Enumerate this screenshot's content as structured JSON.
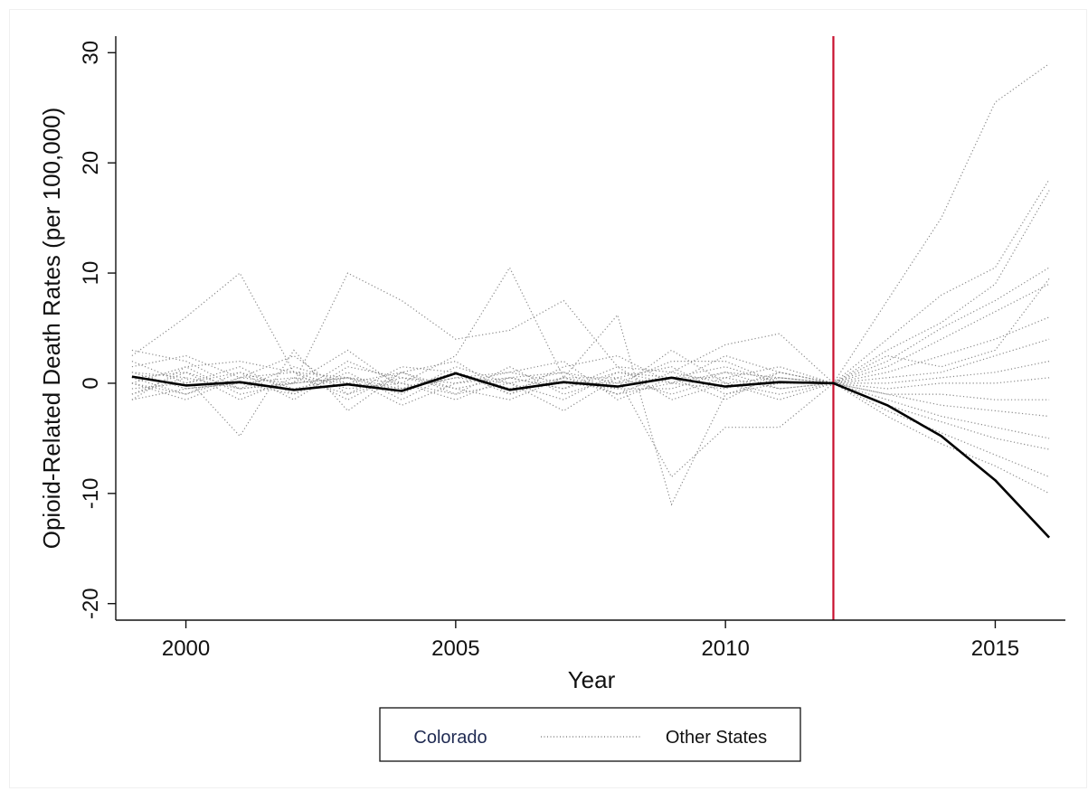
{
  "chart_data": {
    "type": "line",
    "title": "",
    "xlabel": "Year",
    "ylabel": "Opioid-Related Death Rates (per 100,000)",
    "xlim": [
      1998.7,
      2016.3
    ],
    "ylim": [
      -21.5,
      31.5
    ],
    "x_ticks": [
      2000,
      2005,
      2010,
      2015
    ],
    "y_ticks": [
      -20,
      -10,
      0,
      10,
      20,
      30
    ],
    "x_tick_labels": [
      "2000",
      "2005",
      "2010",
      "2015"
    ],
    "y_tick_labels": [
      "-20",
      "-10",
      "0",
      "10",
      "20",
      "30"
    ],
    "grid": false,
    "reference_line": {
      "x": 2012,
      "color": "#c8102e"
    },
    "x": [
      1999,
      2000,
      2001,
      2002,
      2003,
      2004,
      2005,
      2006,
      2007,
      2008,
      2009,
      2010,
      2011,
      2012,
      2013,
      2014,
      2015,
      2016
    ],
    "series": [
      {
        "name": "Colorado",
        "style": "solid",
        "color": "#000000",
        "values": [
          0.6,
          -0.2,
          0.1,
          -0.6,
          -0.1,
          -0.7,
          0.9,
          -0.6,
          0.1,
          -0.3,
          0.5,
          -0.3,
          0.1,
          0.0,
          -2.0,
          -4.8,
          -8.8,
          -14.0
        ]
      },
      {
        "name": "Other States",
        "style": "dotted",
        "color": "#8a8a8a",
        "group": [
          [
            2.5,
            6.0,
            10.0,
            1.0,
            0.5,
            -0.5,
            1.0,
            -0.5,
            0.5,
            -1.0,
            0.0,
            1.0,
            0.5,
            0.0,
            7.5,
            15.0,
            25.5,
            29.0
          ],
          [
            1.0,
            0.5,
            -0.5,
            0.0,
            10.0,
            7.5,
            4.0,
            4.8,
            7.5,
            1.5,
            1.0,
            3.5,
            4.5,
            0.0,
            4.0,
            8.0,
            10.5,
            18.5
          ],
          [
            0.0,
            -1.0,
            1.0,
            -0.5,
            0.5,
            0.0,
            2.5,
            10.5,
            0.5,
            6.2,
            -11.0,
            -1.0,
            0.0,
            0.0,
            3.0,
            5.5,
            9.0,
            17.5
          ],
          [
            -1.0,
            0.5,
            -4.8,
            3.0,
            -2.5,
            1.0,
            -1.0,
            0.0,
            -2.5,
            0.5,
            -8.5,
            -4.0,
            -4.0,
            0.0,
            2.0,
            5.0,
            7.5,
            10.5
          ],
          [
            1.5,
            2.5,
            0.5,
            0.0,
            3.0,
            -0.5,
            0.5,
            1.0,
            0.0,
            -0.5,
            3.0,
            0.0,
            0.5,
            0.0,
            1.5,
            4.0,
            6.5,
            9.0
          ],
          [
            0.5,
            1.0,
            -0.5,
            1.5,
            0.0,
            1.0,
            -0.5,
            0.5,
            1.0,
            0.0,
            0.5,
            1.5,
            0.0,
            0.0,
            1.0,
            2.5,
            4.0,
            6.0
          ],
          [
            -0.5,
            0.0,
            1.5,
            -1.0,
            1.0,
            -1.5,
            1.0,
            -1.0,
            0.5,
            0.5,
            -1.0,
            0.5,
            -0.5,
            0.0,
            0.5,
            1.0,
            2.5,
            4.0
          ],
          [
            1.0,
            -0.5,
            0.0,
            0.5,
            -1.0,
            0.5,
            0.0,
            0.5,
            -0.5,
            1.0,
            0.0,
            -0.5,
            1.0,
            0.0,
            0.0,
            0.5,
            1.0,
            2.0
          ],
          [
            -1.5,
            1.5,
            -1.0,
            0.0,
            0.5,
            -1.0,
            1.5,
            0.0,
            1.0,
            -1.0,
            1.0,
            0.0,
            -1.0,
            0.0,
            -0.5,
            0.0,
            0.0,
            0.5
          ],
          [
            0.0,
            -1.5,
            0.5,
            1.0,
            -0.5,
            0.0,
            -1.0,
            1.5,
            -1.0,
            0.5,
            1.5,
            -1.0,
            0.5,
            0.0,
            -1.0,
            -1.0,
            -1.5,
            -1.5
          ],
          [
            2.0,
            0.0,
            1.0,
            -1.5,
            1.5,
            0.5,
            -0.5,
            -1.5,
            0.5,
            -0.5,
            -0.5,
            1.0,
            -0.5,
            0.0,
            -1.0,
            -2.0,
            -2.5,
            -3.0
          ],
          [
            -1.0,
            1.0,
            -1.5,
            0.5,
            0.0,
            -0.5,
            0.5,
            0.0,
            -1.5,
            1.0,
            0.5,
            -1.5,
            1.0,
            0.0,
            -1.5,
            -3.0,
            -4.0,
            -5.0
          ],
          [
            0.5,
            -1.0,
            0.5,
            2.5,
            -1.0,
            1.5,
            1.0,
            -0.5,
            0.0,
            0.0,
            2.0,
            2.0,
            0.0,
            0.0,
            -2.0,
            -3.5,
            -5.0,
            -6.0
          ],
          [
            3.0,
            2.0,
            -0.5,
            0.0,
            0.5,
            -2.0,
            0.0,
            1.0,
            2.0,
            -1.5,
            0.5,
            0.5,
            1.5,
            0.0,
            -2.5,
            -4.5,
            -6.5,
            -8.5
          ],
          [
            -1.5,
            -0.5,
            0.0,
            -1.0,
            2.0,
            0.0,
            -1.5,
            0.5,
            -0.5,
            1.5,
            -1.5,
            0.0,
            -1.5,
            0.0,
            -3.0,
            -5.5,
            -7.5,
            -10.0
          ],
          [
            0.0,
            1.5,
            2.0,
            1.0,
            -1.5,
            1.0,
            2.0,
            -1.0,
            1.5,
            2.5,
            0.0,
            2.5,
            1.0,
            0.0,
            2.5,
            1.5,
            3.0,
            9.5
          ]
        ]
      }
    ],
    "legend": {
      "placement": "bottom-center",
      "entries": [
        "Colorado",
        "Other States"
      ]
    }
  }
}
